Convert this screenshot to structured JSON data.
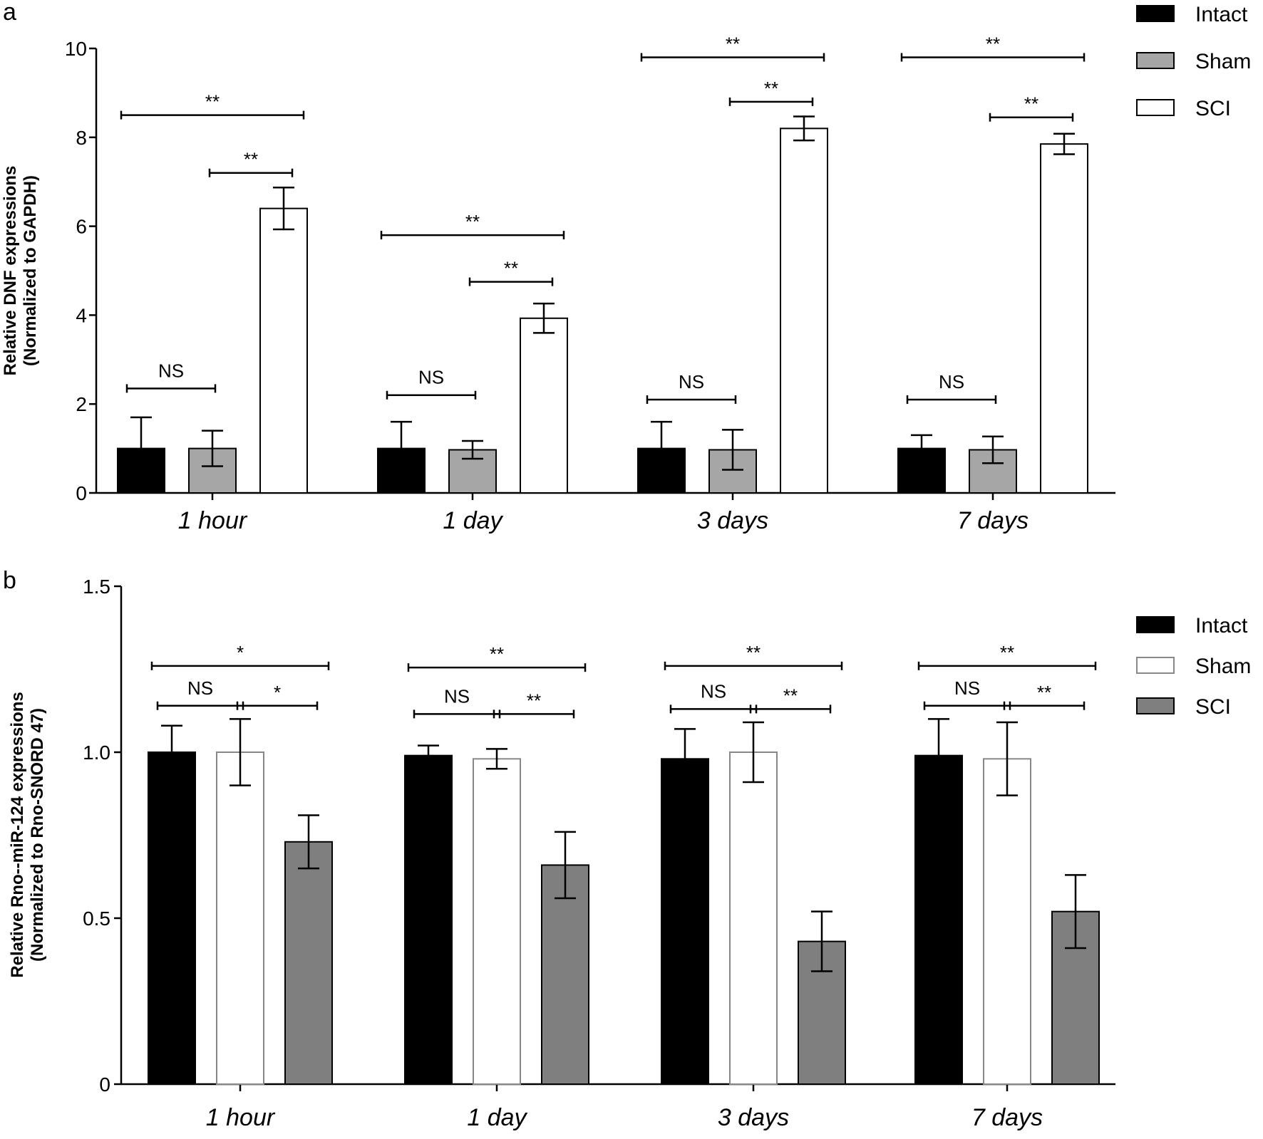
{
  "chart_data": [
    {
      "panel": "a",
      "type": "bar",
      "ylabel_line1": "Relative DNF expressions",
      "ylabel_line2": "(Normalized to GAPDH)",
      "ylim": [
        0,
        10
      ],
      "yticks": [
        "0",
        "2",
        "4",
        "6",
        "8",
        "10"
      ],
      "yticks_values": [
        0,
        2,
        4,
        6,
        8,
        10
      ],
      "categories": [
        "1 hour",
        "1 day",
        "3 days",
        "7 days"
      ],
      "legend": [
        "Intact",
        "Sham",
        "SCI"
      ],
      "colors": [
        "#000000",
        "#a6a6a6",
        "#ffffff"
      ],
      "series": [
        {
          "name": "Intact",
          "values": [
            1.0,
            1.0,
            1.0,
            1.0
          ],
          "errors": [
            0.7,
            0.6,
            0.6,
            0.3
          ]
        },
        {
          "name": "Sham",
          "values": [
            1.0,
            0.97,
            0.97,
            0.97
          ],
          "errors": [
            0.4,
            0.2,
            0.45,
            0.3
          ]
        },
        {
          "name": "SCI",
          "values": [
            6.4,
            3.93,
            8.2,
            7.85
          ],
          "errors": [
            0.47,
            0.33,
            0.27,
            0.23
          ]
        }
      ],
      "significance": [
        {
          "group": 0,
          "from": 0,
          "to": 1,
          "label": "NS",
          "y": 2.35
        },
        {
          "group": 0,
          "from": 1,
          "to": 2,
          "label": "**",
          "y": 7.2
        },
        {
          "group": 0,
          "from": 0,
          "to": 2,
          "label": "**",
          "y": 8.5
        },
        {
          "group": 1,
          "from": 0,
          "to": 1,
          "label": "NS",
          "y": 2.2
        },
        {
          "group": 1,
          "from": 1,
          "to": 2,
          "label": "**",
          "y": 4.75
        },
        {
          "group": 1,
          "from": 0,
          "to": 2,
          "label": "**",
          "y": 5.8
        },
        {
          "group": 2,
          "from": 0,
          "to": 1,
          "label": "NS",
          "y": 2.1
        },
        {
          "group": 2,
          "from": 1,
          "to": 2,
          "label": "**",
          "y": 8.8
        },
        {
          "group": 2,
          "from": 0,
          "to": 2,
          "label": "**",
          "y": 9.8
        },
        {
          "group": 3,
          "from": 0,
          "to": 1,
          "label": "NS",
          "y": 2.1
        },
        {
          "group": 3,
          "from": 1,
          "to": 2,
          "label": "**",
          "y": 8.45
        },
        {
          "group": 3,
          "from": 0,
          "to": 2,
          "label": "**",
          "y": 9.8
        }
      ]
    },
    {
      "panel": "b",
      "type": "bar",
      "ylabel_line1": "Relative Rno--miR-124 expressions",
      "ylabel_line2": "(Normalized to Rno-SNORD 47)",
      "ylim": [
        0,
        1.5
      ],
      "yticks": [
        "0",
        "0.5",
        "1.0",
        "1.5"
      ],
      "yticks_values": [
        0,
        0.5,
        1.0,
        1.5
      ],
      "categories": [
        "1 hour",
        "1 day",
        "3 days",
        "7 days"
      ],
      "legend": [
        "Intact",
        "Sham",
        "SCI"
      ],
      "colors": [
        "#000000",
        "#ffffff",
        "#7f7f7f"
      ],
      "series": [
        {
          "name": "Intact",
          "values": [
            1.0,
            0.99,
            0.98,
            0.99
          ],
          "errors": [
            0.08,
            0.03,
            0.09,
            0.11
          ]
        },
        {
          "name": "Sham",
          "values": [
            1.0,
            0.98,
            1.0,
            0.98
          ],
          "errors": [
            0.1,
            0.03,
            0.09,
            0.11
          ]
        },
        {
          "name": "SCI",
          "values": [
            0.73,
            0.66,
            0.43,
            0.52
          ],
          "errors": [
            0.08,
            0.1,
            0.09,
            0.11
          ]
        }
      ],
      "significance": [
        {
          "group": 0,
          "from": 0,
          "to": 1,
          "label": "NS",
          "y": 1.14
        },
        {
          "group": 0,
          "from": 1,
          "to": 2,
          "label": "*",
          "y": 1.14
        },
        {
          "group": 0,
          "from": 0,
          "to": 2,
          "label": "*",
          "y": 1.26
        },
        {
          "group": 1,
          "from": 0,
          "to": 1,
          "label": "NS",
          "y": 1.115
        },
        {
          "group": 1,
          "from": 1,
          "to": 2,
          "label": "**",
          "y": 1.115
        },
        {
          "group": 1,
          "from": 0,
          "to": 2,
          "label": "**",
          "y": 1.255
        },
        {
          "group": 2,
          "from": 0,
          "to": 1,
          "label": "NS",
          "y": 1.13
        },
        {
          "group": 2,
          "from": 1,
          "to": 2,
          "label": "**",
          "y": 1.13
        },
        {
          "group": 2,
          "from": 0,
          "to": 2,
          "label": "**",
          "y": 1.26
        },
        {
          "group": 3,
          "from": 0,
          "to": 1,
          "label": "NS",
          "y": 1.14
        },
        {
          "group": 3,
          "from": 1,
          "to": 2,
          "label": "**",
          "y": 1.14
        },
        {
          "group": 3,
          "from": 0,
          "to": 2,
          "label": "**",
          "y": 1.26
        }
      ]
    }
  ]
}
